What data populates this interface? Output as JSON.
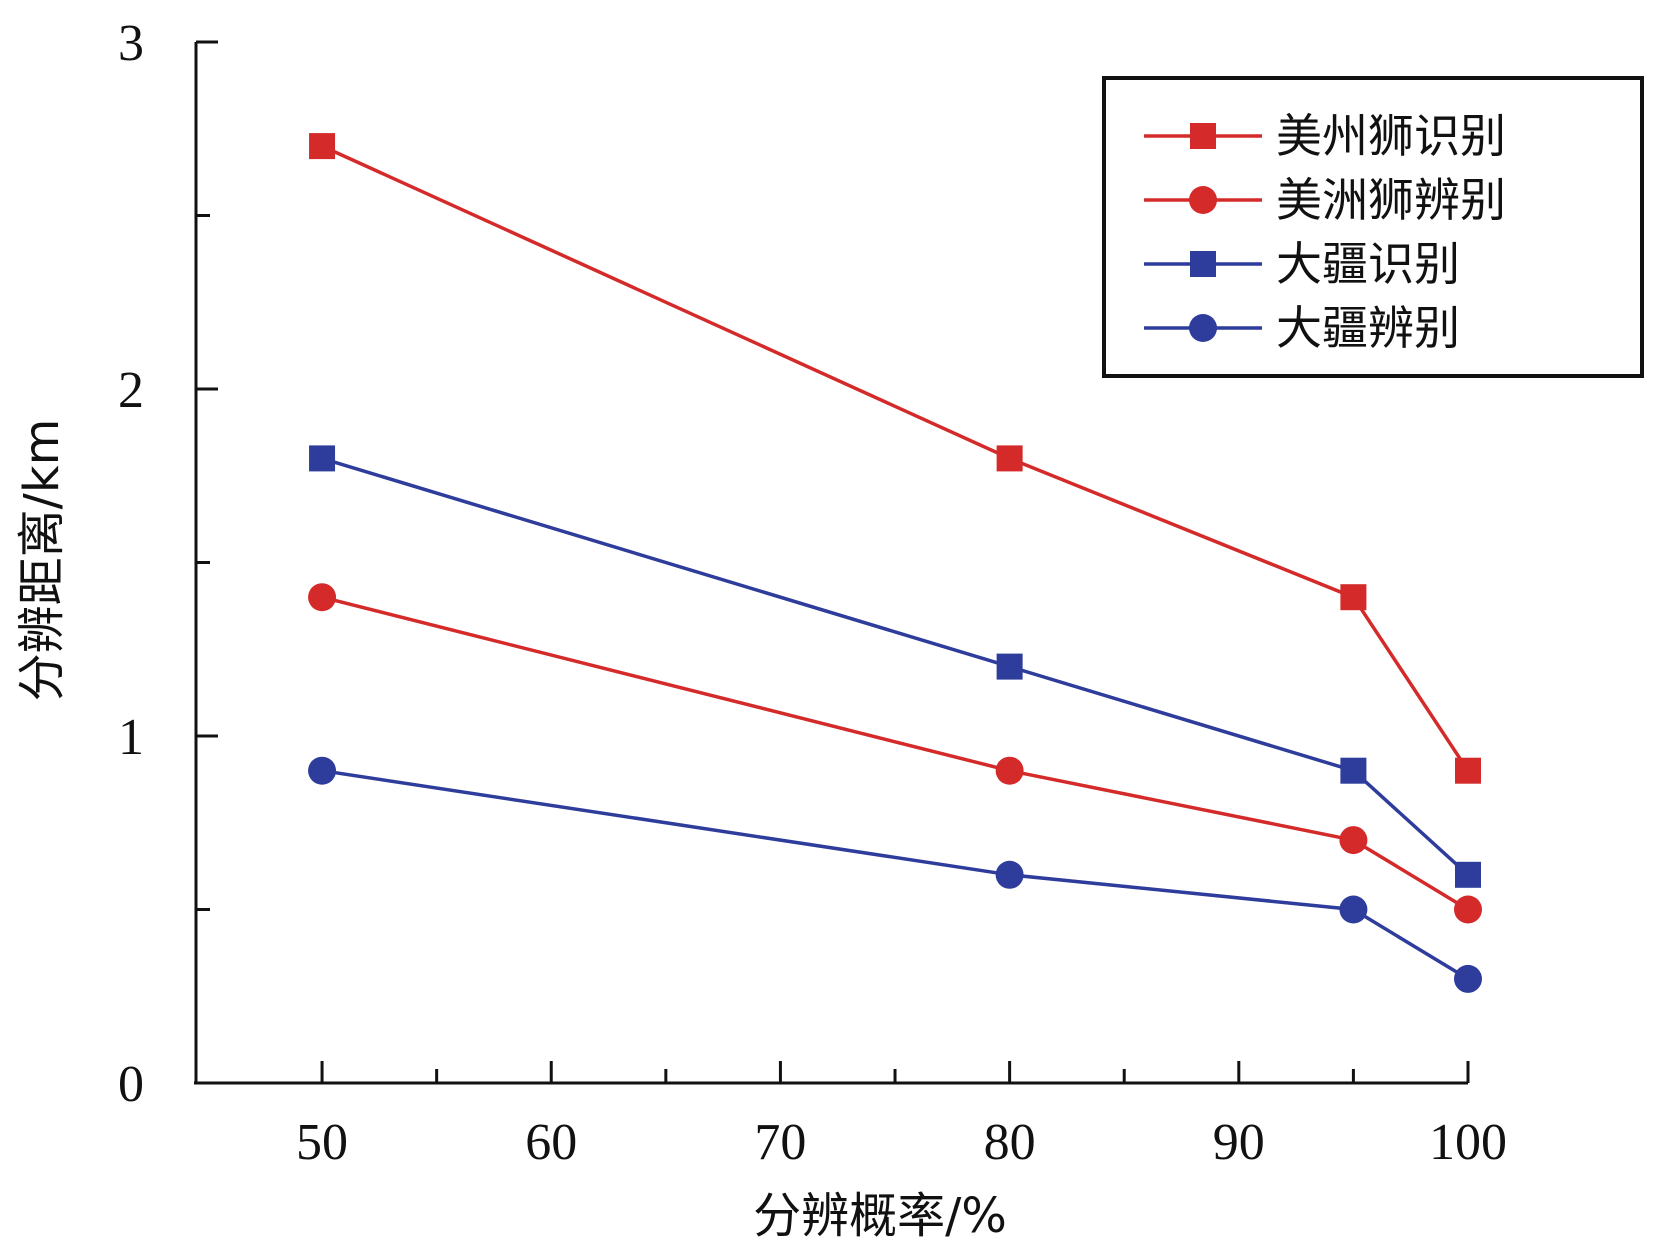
{
  "chart_data": {
    "type": "line",
    "xlabel": "分辨概率/%",
    "ylabel": "分辨距离/km",
    "xlim": [
      44.5,
      100
    ],
    "ylim": [
      0,
      3
    ],
    "x_ticks": [
      50,
      60,
      70,
      80,
      90,
      100
    ],
    "x_minor_ticks": [
      55,
      65,
      75,
      85,
      95
    ],
    "y_ticks": [
      0,
      1,
      2,
      3
    ],
    "y_minor_ticks": [
      0.5,
      1.5,
      2.5
    ],
    "grid": false,
    "legend_position": "top-right",
    "series": [
      {
        "name": "美州狮识别",
        "color": "#d42a2a",
        "marker": "square",
        "x": [
          50,
          80,
          95,
          100
        ],
        "y": [
          2.7,
          1.8,
          1.4,
          0.9
        ]
      },
      {
        "name": "美洲狮辨别",
        "color": "#d42a2a",
        "marker": "circle",
        "x": [
          50,
          80,
          95,
          100
        ],
        "y": [
          1.4,
          0.9,
          0.7,
          0.5
        ]
      },
      {
        "name": "大疆识别",
        "color": "#2e3c9c",
        "marker": "square",
        "x": [
          50,
          80,
          95,
          100
        ],
        "y": [
          1.8,
          1.2,
          0.9,
          0.6
        ]
      },
      {
        "name": "大疆辨别",
        "color": "#2e3c9c",
        "marker": "circle",
        "x": [
          50,
          80,
          95,
          100
        ],
        "y": [
          0.9,
          0.6,
          0.5,
          0.3
        ]
      }
    ]
  }
}
